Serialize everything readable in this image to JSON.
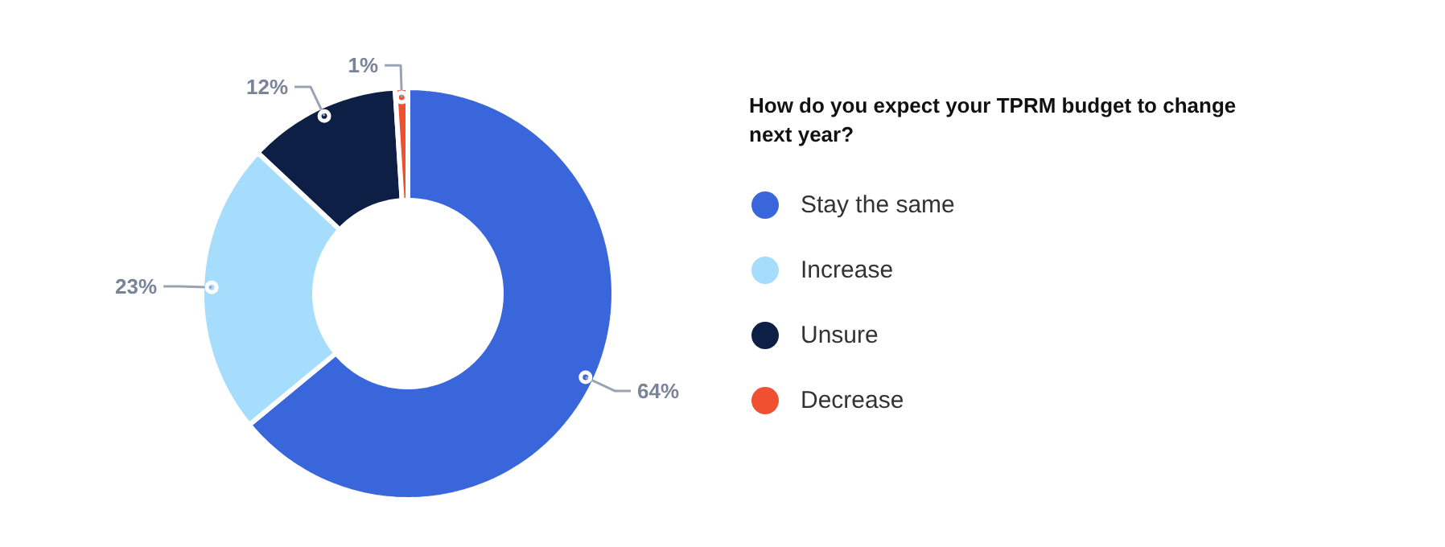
{
  "chart_data": {
    "type": "donut",
    "title": "How do you expect your TPRM budget to change next year?",
    "categories": [
      "Stay the same",
      "Increase",
      "Unsure",
      "Decrease"
    ],
    "values": [
      64,
      23,
      12,
      1
    ],
    "value_labels": [
      "64%",
      "23%",
      "12%",
      "1%"
    ],
    "colors": [
      "#3a66db",
      "#a6dcfc",
      "#0d1f45",
      "#f05030"
    ],
    "legend": "right"
  }
}
